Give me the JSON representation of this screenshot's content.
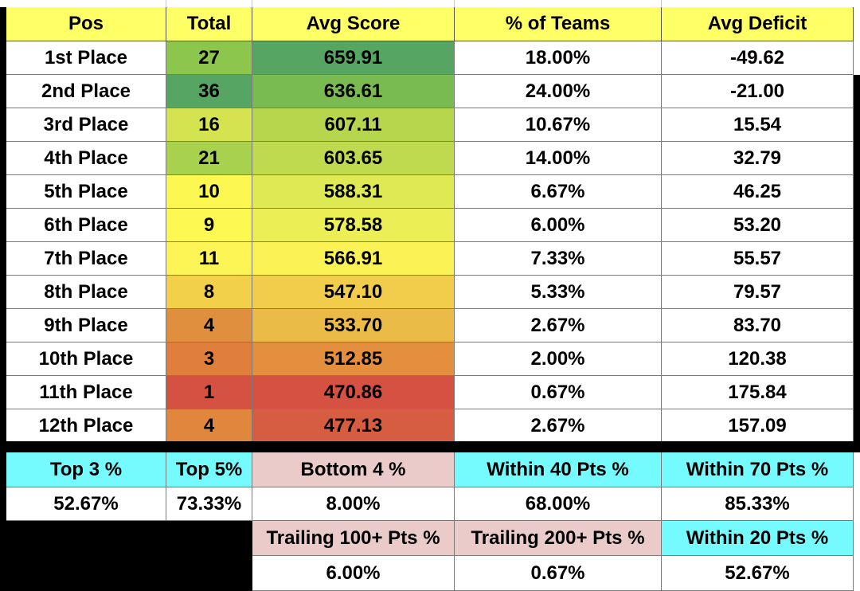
{
  "header": [
    "Pos",
    "Total",
    "Avg Score",
    "% of Teams",
    "Avg Deficit"
  ],
  "rows": [
    {
      "pos": "1st Place",
      "total": "27",
      "avg": "659.91",
      "pct": "18.00%",
      "def": "-49.62"
    },
    {
      "pos": "2nd Place",
      "total": "36",
      "avg": "636.61",
      "pct": "24.00%",
      "def": "-21.00"
    },
    {
      "pos": "3rd Place",
      "total": "16",
      "avg": "607.11",
      "pct": "10.67%",
      "def": "15.54"
    },
    {
      "pos": "4th Place",
      "total": "21",
      "avg": "603.65",
      "pct": "14.00%",
      "def": "32.79"
    },
    {
      "pos": "5th Place",
      "total": "10",
      "avg": "588.31",
      "pct": "6.67%",
      "def": "46.25"
    },
    {
      "pos": "6th Place",
      "total": "9",
      "avg": "578.58",
      "pct": "6.00%",
      "def": "53.20"
    },
    {
      "pos": "7th Place",
      "total": "11",
      "avg": "566.91",
      "pct": "7.33%",
      "def": "55.57"
    },
    {
      "pos": "8th Place",
      "total": "8",
      "avg": "547.10",
      "pct": "5.33%",
      "def": "79.57"
    },
    {
      "pos": "9th Place",
      "total": "4",
      "avg": "533.70",
      "pct": "2.67%",
      "def": "83.70"
    },
    {
      "pos": "10th Place",
      "total": "3",
      "avg": "512.85",
      "pct": "2.00%",
      "def": "120.38"
    },
    {
      "pos": "11th Place",
      "total": "1",
      "avg": "470.86",
      "pct": "0.67%",
      "def": "175.84"
    },
    {
      "pos": "12th Place",
      "total": "4",
      "avg": "477.13",
      "pct": "2.67%",
      "def": "157.09"
    }
  ],
  "total_colors": [
    "#8cc64c",
    "#57a563",
    "#d5e351",
    "#a8d24e",
    "#fcf751",
    "#fef852",
    "#fdf555",
    "#f2d04a",
    "#e08f3e",
    "#e07f3c",
    "#d55141",
    "#e0873d"
  ],
  "avg_colors": [
    "#57a563",
    "#7abb51",
    "#b6d64e",
    "#bfda4f",
    "#dfe953",
    "#ebee55",
    "#fbf356",
    "#f2cd4b",
    "#ebbb47",
    "#e38f3e",
    "#d55141",
    "#d65c42"
  ],
  "summary": {
    "row1_labels": [
      "Top 3 %",
      "Top 5%",
      "Bottom 4 %",
      "Within 40 Pts %",
      "Within 70 Pts %"
    ],
    "row1_values": [
      "52.67%",
      "73.33%",
      "8.00%",
      "68.00%",
      "85.33%"
    ],
    "row2_labels": [
      "Trailing 100+ Pts %",
      "Trailing 200+ Pts %",
      "Within 20 Pts %"
    ],
    "row2_values": [
      "6.00%",
      "0.67%",
      "52.67%"
    ]
  },
  "colors": {
    "header_yellow": "#ffff66",
    "cyan": "#75fbfd",
    "pink": "#ebcaca"
  }
}
